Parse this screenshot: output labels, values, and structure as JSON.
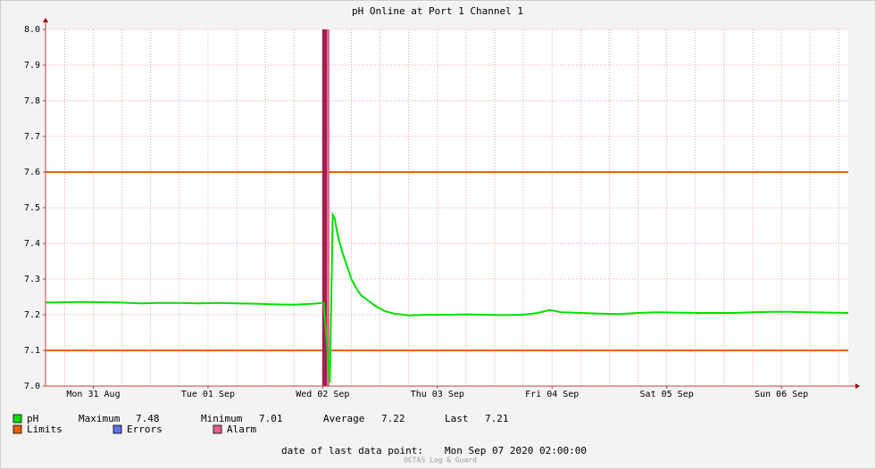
{
  "chart_data": {
    "type": "line",
    "title": "pH Online at Port 1 Channel 1",
    "xlim": [
      2,
      170
    ],
    "xticks": [
      {
        "value": 12,
        "label": "Mon 31 Aug"
      },
      {
        "value": 36,
        "label": "Tue 01 Sep"
      },
      {
        "value": 60,
        "label": "Wed 02 Sep"
      },
      {
        "value": 84,
        "label": "Thu 03 Sep"
      },
      {
        "value": 108,
        "label": "Fri 04 Sep"
      },
      {
        "value": 132,
        "label": "Sat 05 Sep"
      },
      {
        "value": 156,
        "label": "Sun 06 Sep"
      }
    ],
    "x_grid_step": 6,
    "ylim": [
      7.0,
      8.0
    ],
    "yticks": [
      {
        "value": 7,
        "label": "7.0"
      },
      7.1,
      7.2,
      7.3,
      7.4,
      7.5,
      7.6,
      7.7,
      7.8,
      7.9,
      {
        "value": 8,
        "label": "8.0"
      }
    ],
    "grid": true,
    "series": [
      {
        "name": "pH",
        "color": "#00e000",
        "x": [
          2,
          6,
          10,
          14,
          18,
          22,
          26,
          30,
          34,
          38,
          42,
          46,
          50,
          54,
          58,
          60.2,
          61.5,
          62.1,
          62.5,
          63.2,
          64,
          65,
          66,
          67,
          68,
          69.5,
          71,
          73,
          75,
          78,
          82,
          86,
          90,
          94,
          98,
          102,
          105,
          107.5,
          110,
          114,
          118,
          122,
          126,
          130,
          134,
          138,
          142,
          146,
          150,
          154,
          158,
          162,
          166,
          170
        ],
        "values": [
          7.234,
          7.235,
          7.236,
          7.235,
          7.234,
          7.232,
          7.233,
          7.233,
          7.232,
          7.233,
          7.232,
          7.231,
          7.229,
          7.228,
          7.231,
          7.233,
          7.01,
          7.48,
          7.47,
          7.42,
          7.38,
          7.34,
          7.3,
          7.275,
          7.255,
          7.24,
          7.225,
          7.21,
          7.203,
          7.198,
          7.2,
          7.2,
          7.201,
          7.2,
          7.199,
          7.2,
          7.205,
          7.213,
          7.207,
          7.205,
          7.203,
          7.202,
          7.205,
          7.207,
          7.206,
          7.205,
          7.205,
          7.205,
          7.207,
          7.208,
          7.208,
          7.207,
          7.206,
          7.205
        ]
      }
    ],
    "limits": {
      "name": "Limits",
      "color": "#f06000",
      "values": [
        7.1,
        7.6
      ]
    },
    "errors": {
      "name": "Errors",
      "color": "#6070f0"
    },
    "alarm": {
      "name": "Alarm",
      "color": "#e8608a",
      "spans": [
        {
          "start": 59.9,
          "end": 60.9,
          "color": "#a02050"
        },
        {
          "start": 60.9,
          "end": 61.4,
          "color": "#e8608a"
        }
      ]
    },
    "stats": [
      {
        "label": "Maximum",
        "value": 7.48
      },
      {
        "label": "Minimum",
        "value": 7.01
      },
      {
        "label": "Average",
        "value": 7.22
      },
      {
        "label": "Last",
        "value": 7.21
      }
    ],
    "footer": {
      "label": "date of last data point:",
      "value": "Mon Sep 07 2020 02:00:00"
    },
    "watermark": "OCTAS Log & Guard"
  }
}
